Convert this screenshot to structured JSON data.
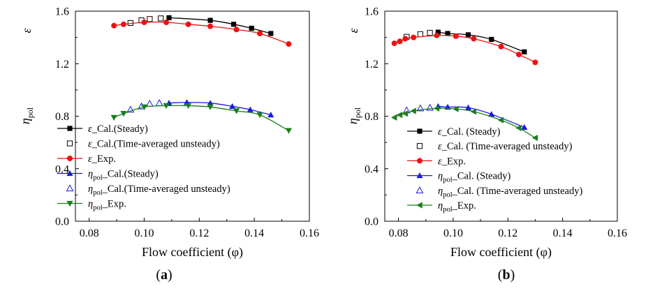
{
  "chart_data": [
    {
      "type": "line",
      "panel_label": "(a)",
      "xlabel": "Flow coefficient (φ)",
      "ylabel": "ε",
      "ylabel2": "η_pol",
      "xlim": [
        0.075,
        0.16
      ],
      "ylim": [
        0.0,
        1.6
      ],
      "xticks": [
        "0.08",
        "0.10",
        "0.12",
        "0.14",
        "0.16"
      ],
      "yticks": [
        "0.0",
        "0.4",
        "0.8",
        "1.2",
        "1.6"
      ],
      "xtick_values": [
        0.08,
        0.1,
        0.12,
        0.14,
        0.16
      ],
      "ytick_values": [
        0.0,
        0.4,
        0.8,
        1.2,
        1.6
      ],
      "legend_position": "middle-left",
      "series": [
        {
          "name": "ε_Cal.(Steady)",
          "label_main": "ε",
          "label_sub": "",
          "label_rest": "_Cal.(Steady)",
          "marker": "square-filled",
          "color": "#000000",
          "line": true,
          "x": [
            0.109,
            0.124,
            0.1325,
            0.139,
            0.146
          ],
          "y": [
            1.55,
            1.53,
            1.5,
            1.47,
            1.43
          ]
        },
        {
          "name": "ε_Cal.(Time-averaged unsteady)",
          "label_main": "ε",
          "label_sub": "",
          "label_rest": "_Cal.(Time-averaged unsteady)",
          "marker": "square-open",
          "color": "#000000",
          "line": false,
          "x": [
            0.095,
            0.099,
            0.102,
            0.106
          ],
          "y": [
            1.51,
            1.53,
            1.54,
            1.545
          ]
        },
        {
          "name": "ε_Exp.",
          "label_main": "ε",
          "label_sub": "",
          "label_rest": "_Exp.",
          "marker": "circle-filled",
          "color": "#ee1111",
          "line": true,
          "x": [
            0.089,
            0.0925,
            0.1,
            0.108,
            0.116,
            0.124,
            0.1335,
            0.142,
            0.1525
          ],
          "y": [
            1.49,
            1.5,
            1.515,
            1.515,
            1.5,
            1.485,
            1.46,
            1.43,
            1.35
          ]
        },
        {
          "name": "η_pol_Cal.(Steady)",
          "label_main": "η",
          "label_sub": "pol",
          "label_rest": "_Cal.(Steady)",
          "marker": "triangle-up-filled",
          "color": "#1a1adf",
          "line": true,
          "x": [
            0.109,
            0.1155,
            0.124,
            0.132,
            0.1385,
            0.146
          ],
          "y": [
            0.9,
            0.905,
            0.9,
            0.875,
            0.85,
            0.81
          ]
        },
        {
          "name": "η_pol_Cal.(Time-averaged unsteady)",
          "label_main": "η",
          "label_sub": "pol",
          "label_rest": "_Cal.(Time-averaged unsteady)",
          "marker": "triangle-up-open",
          "color": "#1a1adf",
          "line": false,
          "x": [
            0.095,
            0.099,
            0.102,
            0.1055
          ],
          "y": [
            0.85,
            0.875,
            0.895,
            0.9
          ]
        },
        {
          "name": "η_pol_Exp.",
          "label_main": "η",
          "label_sub": "pol",
          "label_rest": "_Exp.",
          "marker": "triangle-down-filled",
          "color": "#1a7f1a",
          "line": true,
          "x": [
            0.089,
            0.0925,
            0.1,
            0.108,
            0.116,
            0.124,
            0.1335,
            0.142,
            0.1525
          ],
          "y": [
            0.79,
            0.82,
            0.87,
            0.88,
            0.88,
            0.87,
            0.84,
            0.81,
            0.69
          ]
        }
      ]
    },
    {
      "type": "line",
      "panel_label": "(b)",
      "xlabel": "Flow coefficient (φ)",
      "ylabel": "ε",
      "ylabel2": "η_pol",
      "xlim": [
        0.075,
        0.16
      ],
      "ylim": [
        0.0,
        1.6
      ],
      "xticks": [
        "0.08",
        "0.10",
        "0.12",
        "0.14",
        "0.16"
      ],
      "yticks": [
        "0.0",
        "0.4",
        "0.8",
        "1.2",
        "1.6"
      ],
      "xtick_values": [
        0.08,
        0.1,
        0.12,
        0.14,
        0.16
      ],
      "ytick_values": [
        0.0,
        0.4,
        0.8,
        1.2,
        1.6
      ],
      "legend_position": "middle-left",
      "series": [
        {
          "name": "ε_Cal. (Steady)",
          "label_main": "ε",
          "label_sub": "",
          "label_rest": "_Cal. (Steady)",
          "marker": "square-filled",
          "color": "#000000",
          "line": true,
          "x": [
            0.0945,
            0.098,
            0.1055,
            0.114,
            0.126
          ],
          "y": [
            1.44,
            1.43,
            1.42,
            1.385,
            1.29
          ]
        },
        {
          "name": "ε_Cal. (Time-averaged unsteady)",
          "label_main": "ε",
          "label_sub": "",
          "label_rest": "_Cal. (Time-averaged unsteady)",
          "marker": "square-open",
          "color": "#000000",
          "line": false,
          "x": [
            0.083,
            0.088,
            0.0915
          ],
          "y": [
            1.405,
            1.425,
            1.435
          ]
        },
        {
          "name": "ε_Exp.",
          "label_main": "ε",
          "label_sub": "",
          "label_rest": "_Exp.",
          "marker": "circle-filled",
          "color": "#ee1111",
          "line": true,
          "x": [
            0.0785,
            0.0805,
            0.0825,
            0.0855,
            0.094,
            0.101,
            0.1075,
            0.1175,
            0.124,
            0.13
          ],
          "y": [
            1.355,
            1.37,
            1.39,
            1.4,
            1.415,
            1.41,
            1.39,
            1.33,
            1.27,
            1.21
          ]
        },
        {
          "name": "η_pol_Cal. (Steady)",
          "label_main": "η",
          "label_sub": "pol",
          "label_rest": "_Cal. (Steady)",
          "marker": "triangle-up-filled",
          "color": "#1a1adf",
          "line": true,
          "x": [
            0.0945,
            0.098,
            0.1055,
            0.114,
            0.126
          ],
          "y": [
            0.875,
            0.87,
            0.865,
            0.815,
            0.715
          ]
        },
        {
          "name": "η_pol_Cal. (Time-averaged unsteady)",
          "label_main": "η",
          "label_sub": "pol",
          "label_rest": "_Cal. (Time-averaged unsteady)",
          "marker": "triangle-up-open",
          "color": "#1a1adf",
          "line": false,
          "x": [
            0.083,
            0.088,
            0.0915
          ],
          "y": [
            0.845,
            0.86,
            0.865
          ]
        },
        {
          "name": "η_pol_Exp.",
          "label_main": "η",
          "label_sub": "pol",
          "label_rest": "_Exp.",
          "marker": "triangle-left-filled",
          "color": "#1a7f1a",
          "line": true,
          "x": [
            0.0785,
            0.0805,
            0.0825,
            0.0855,
            0.094,
            0.101,
            0.1075,
            0.1175,
            0.124,
            0.13
          ],
          "y": [
            0.79,
            0.81,
            0.82,
            0.84,
            0.86,
            0.855,
            0.835,
            0.77,
            0.71,
            0.635
          ]
        }
      ]
    }
  ]
}
